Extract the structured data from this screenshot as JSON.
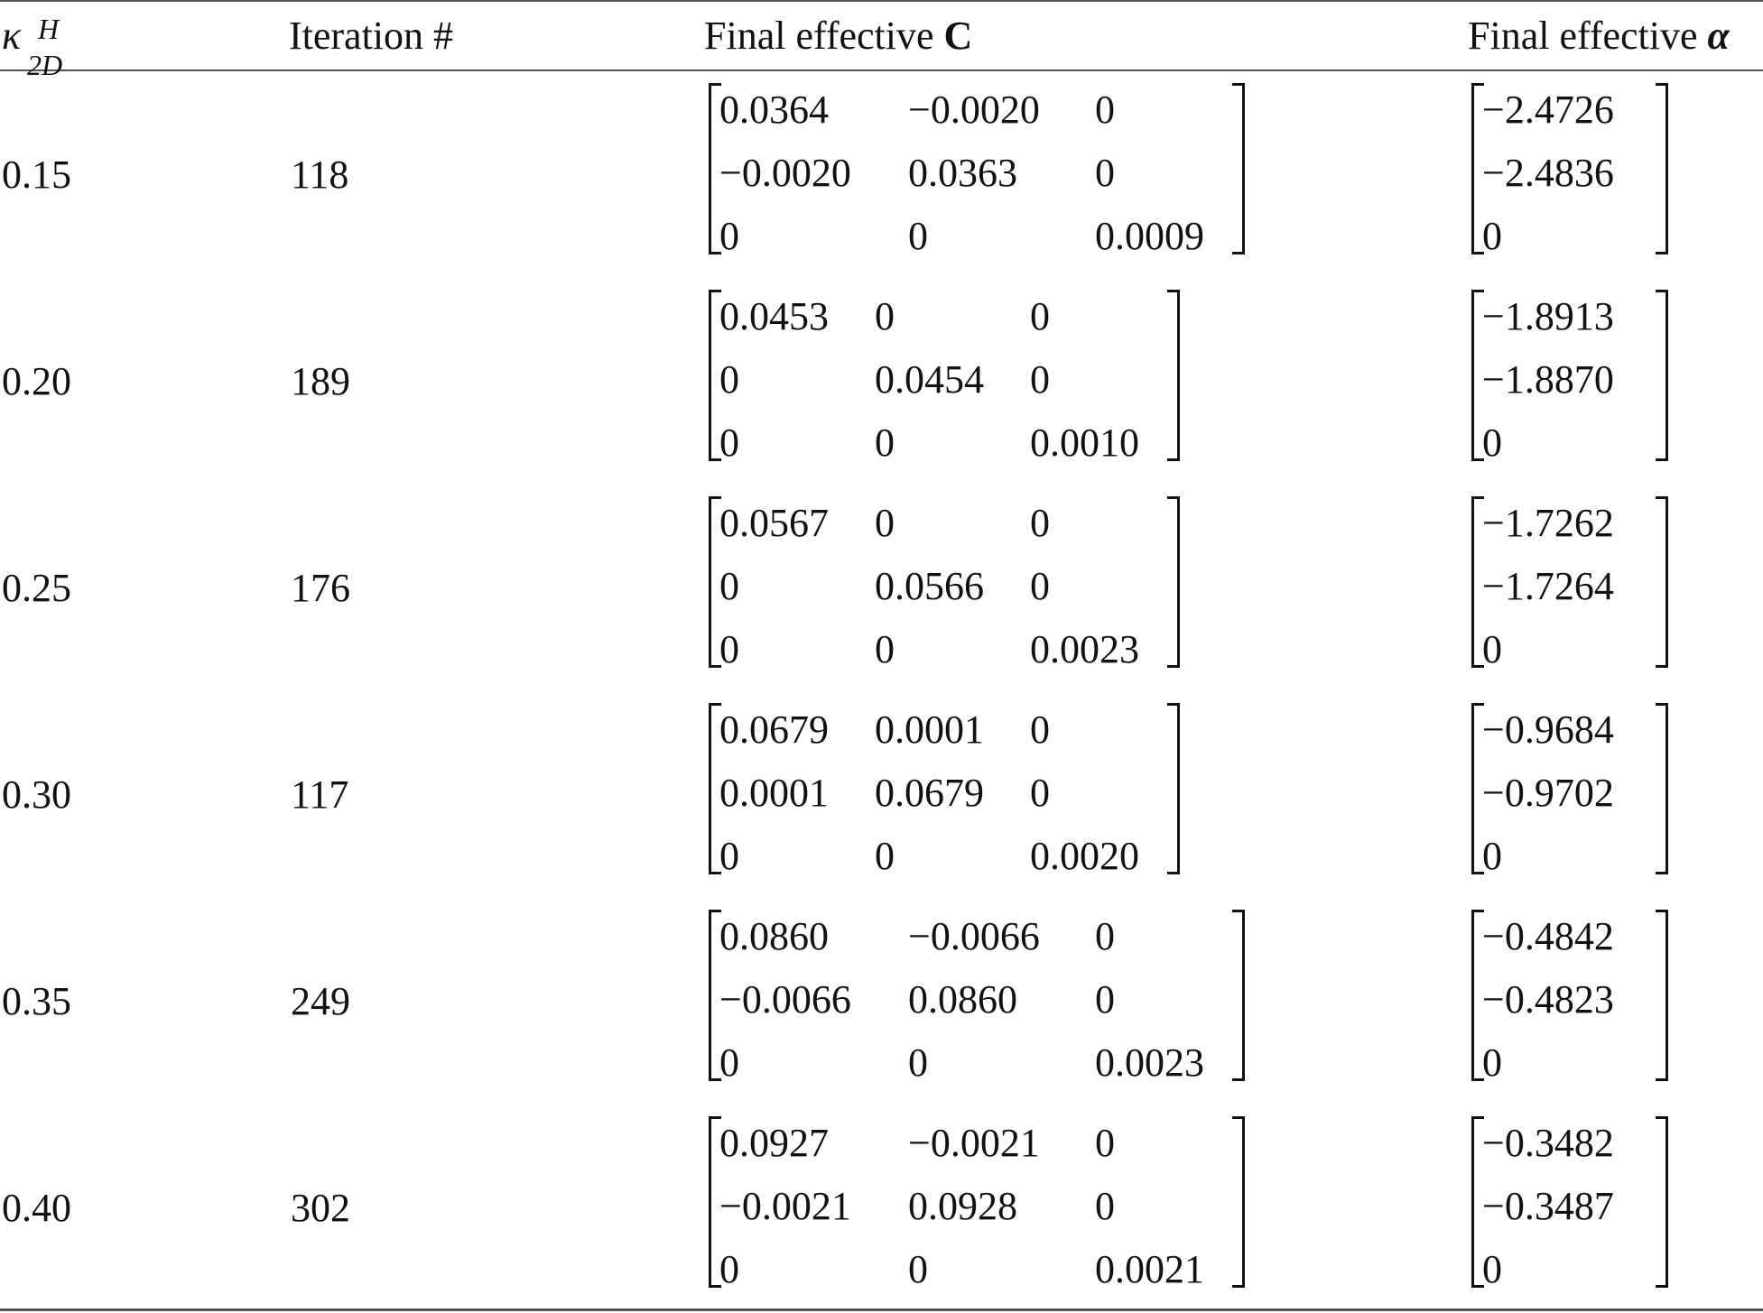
{
  "headers": {
    "kappa_symbol": "κ",
    "kappa_sup": "H",
    "kappa_sub": "2D",
    "iteration": "Iteration #",
    "c_label": "Final effective",
    "c_symbol": "C",
    "alpha_label": "Final effective",
    "alpha_symbol": "α"
  },
  "rows": [
    {
      "kappa": "0.15",
      "iter": "118",
      "C": [
        [
          "0.0364",
          "−0.0020",
          "0"
        ],
        [
          "−0.0020",
          "0.0363",
          "0"
        ],
        [
          "0",
          "0",
          "0.0009"
        ]
      ],
      "alpha": [
        "−2.4726",
        "−2.4836",
        "0"
      ]
    },
    {
      "kappa": "0.20",
      "iter": "189",
      "C": [
        [
          "0.0453",
          "0",
          "0"
        ],
        [
          "0",
          "0.0454",
          "0"
        ],
        [
          "0",
          "0",
          "0.0010"
        ]
      ],
      "alpha": [
        "−1.8913",
        "−1.8870",
        "0"
      ]
    },
    {
      "kappa": "0.25",
      "iter": "176",
      "C": [
        [
          "0.0567",
          "0",
          "0"
        ],
        [
          "0",
          "0.0566",
          "0"
        ],
        [
          "0",
          "0",
          "0.0023"
        ]
      ],
      "alpha": [
        "−1.7262",
        "−1.7264",
        "0"
      ]
    },
    {
      "kappa": "0.30",
      "iter": "117",
      "C": [
        [
          "0.0679",
          "0.0001",
          "0"
        ],
        [
          "0.0001",
          "0.0679",
          "0"
        ],
        [
          "0",
          "0",
          "0.0020"
        ]
      ],
      "alpha": [
        "−0.9684",
        "−0.9702",
        "0"
      ]
    },
    {
      "kappa": "0.35",
      "iter": "249",
      "C": [
        [
          "0.0860",
          "−0.0066",
          "0"
        ],
        [
          "−0.0066",
          "0.0860",
          "0"
        ],
        [
          "0",
          "0",
          "0.0023"
        ]
      ],
      "alpha": [
        "−0.4842",
        "−0.4823",
        "0"
      ]
    },
    {
      "kappa": "0.40",
      "iter": "302",
      "C": [
        [
          "0.0927",
          "−0.0021",
          "0"
        ],
        [
          "−0.0021",
          "0.0928",
          "0"
        ],
        [
          "0",
          "0",
          "0.0021"
        ]
      ],
      "alpha": [
        "−0.3482",
        "−0.3487",
        "0"
      ]
    }
  ]
}
